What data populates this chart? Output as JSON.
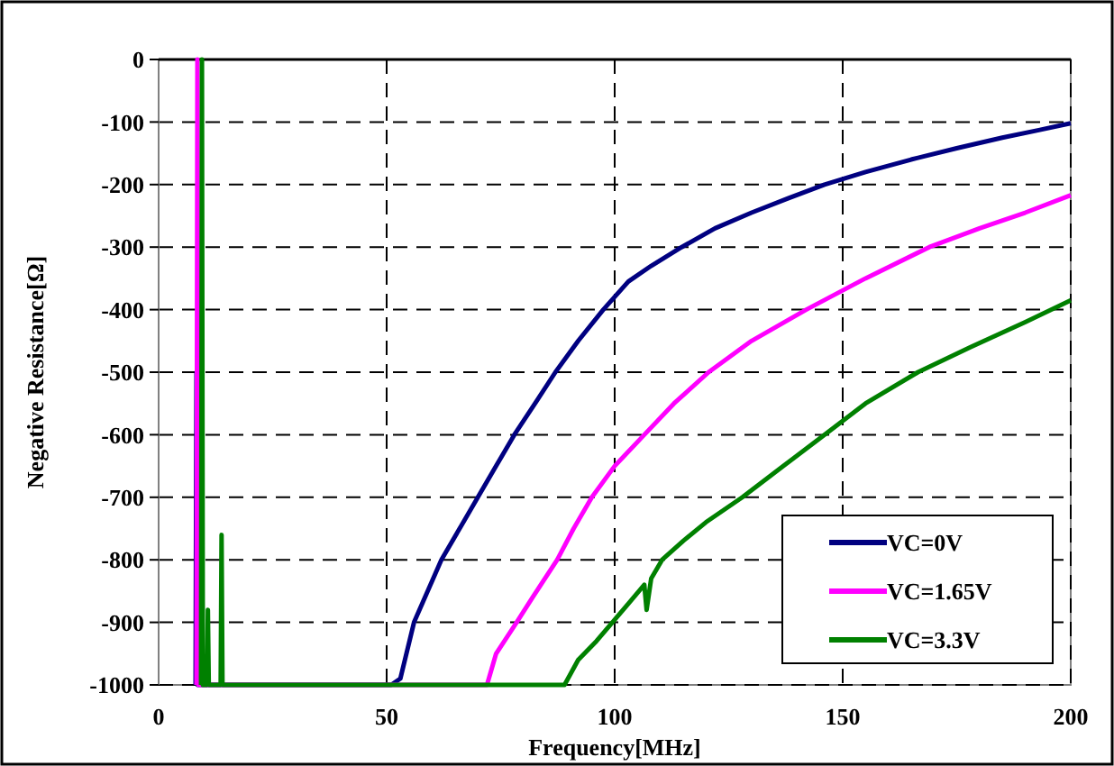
{
  "chart_data": {
    "type": "line",
    "xlabel": "Frequency[MHz]",
    "ylabel": "Negative Resistance[Ω]",
    "xlim": [
      0,
      200
    ],
    "ylim": [
      -1000,
      0
    ],
    "xticks": [
      0,
      50,
      100,
      150,
      200
    ],
    "yticks": [
      -1000,
      -900,
      -800,
      -700,
      -600,
      -500,
      -400,
      -300,
      -200,
      -100,
      0
    ],
    "grid": true,
    "legend": "bottom right",
    "line_style": "solid",
    "series": [
      {
        "name": "VC=0V",
        "color": "#000080",
        "x": [
          8.1,
          8.3,
          8.5,
          51,
          53,
          56,
          62,
          66,
          70,
          74,
          78,
          83,
          87,
          92,
          97.5,
          103,
          108,
          114.7,
          122,
          130,
          138,
          146,
          155,
          165,
          175,
          185,
          193,
          200
        ],
        "values": [
          -1000,
          -500,
          -1000,
          -1000,
          -990,
          -900,
          -800,
          -750,
          -700,
          -650,
          -600,
          -545,
          -500,
          -450,
          -400,
          -355,
          -330,
          -300,
          -270,
          -245,
          -222,
          -200,
          -180,
          -160,
          -142,
          -125,
          -113,
          -102
        ]
      },
      {
        "name": "VC=1.65V",
        "color": "#ff00ff",
        "x": [
          8.3,
          8.5,
          8.7,
          72,
          74,
          78.5,
          82,
          87.4,
          91,
          95,
          100,
          106.5,
          113,
          120.6,
          130,
          142,
          155,
          169,
          180,
          190,
          200
        ],
        "values": [
          -1000,
          0,
          -1000,
          -1000,
          -950,
          -900,
          -860,
          -800,
          -750,
          -700,
          -650,
          -600,
          -550,
          -500,
          -450,
          -400,
          -350,
          -300,
          -270,
          -245,
          -217
        ]
      },
      {
        "name": "VC=3.3V",
        "color": "#008000",
        "x": [
          9.3,
          9.5,
          9.7,
          10.6,
          10.8,
          11,
          13.6,
          13.8,
          14,
          89,
          92,
          96,
          99.5,
          103,
          106.5,
          107,
          108,
          110.4,
          115,
          120,
          128,
          137,
          146,
          155,
          166.5,
          178,
          190,
          200
        ],
        "values": [
          -1000,
          0,
          -1000,
          -1000,
          -880,
          -1000,
          -1000,
          -760,
          -1000,
          -1000,
          -960,
          -930,
          -900,
          -870,
          -840,
          -880,
          -830,
          -800,
          -770,
          -740,
          -700,
          -650,
          -600,
          -550,
          -500,
          -460,
          -420,
          -385
        ]
      }
    ]
  }
}
